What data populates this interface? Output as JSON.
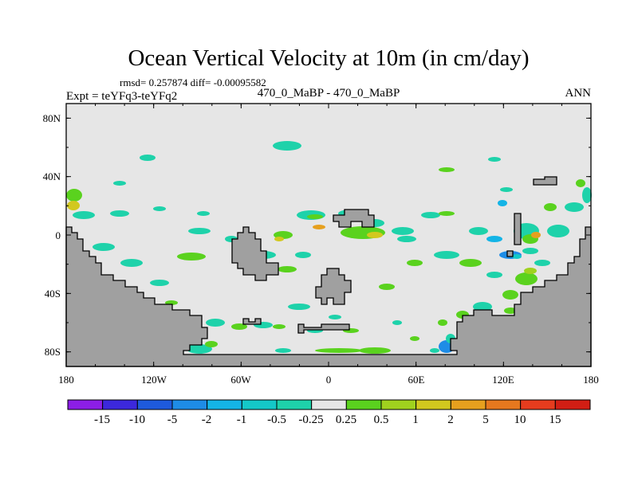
{
  "chart_data": {
    "type": "heatmap",
    "title": "Ocean Vertical Velocity at 10m (in cm/day)",
    "stats_line": "rmsd= 0.257874 diff= -0.00095582",
    "left_label": "Expt = teYFq3-teYFq2",
    "center_label": "470_0_MaBP - 470_0_MaBP",
    "right_label": "ANN",
    "x_ticks": [
      "180",
      "120W",
      "60W",
      "0",
      "60E",
      "120E",
      "180"
    ],
    "y_ticks": [
      "80N",
      "40N",
      "0",
      "40S",
      "80S"
    ],
    "x_range": [
      -180,
      180
    ],
    "y_range": [
      -90,
      90
    ],
    "colorbar": {
      "levels": [
        "-15",
        "-10",
        "-5",
        "-2",
        "-1",
        "-0.5",
        "-0.25",
        "0.25",
        "0.5",
        "1",
        "2",
        "5",
        "10",
        "15"
      ],
      "colors": [
        "#8c1ee6",
        "#3c28dc",
        "#1e5adc",
        "#1e8ce6",
        "#14b4e6",
        "#14c8c8",
        "#1ed2aa",
        "#e6e6e6",
        "#5ad21e",
        "#a0d21e",
        "#d2c81e",
        "#e6a01e",
        "#e6781e",
        "#e63c1e",
        "#d21e14"
      ]
    },
    "land_color": "#a0a0a0",
    "ocean_background": "#e6e6e6"
  }
}
